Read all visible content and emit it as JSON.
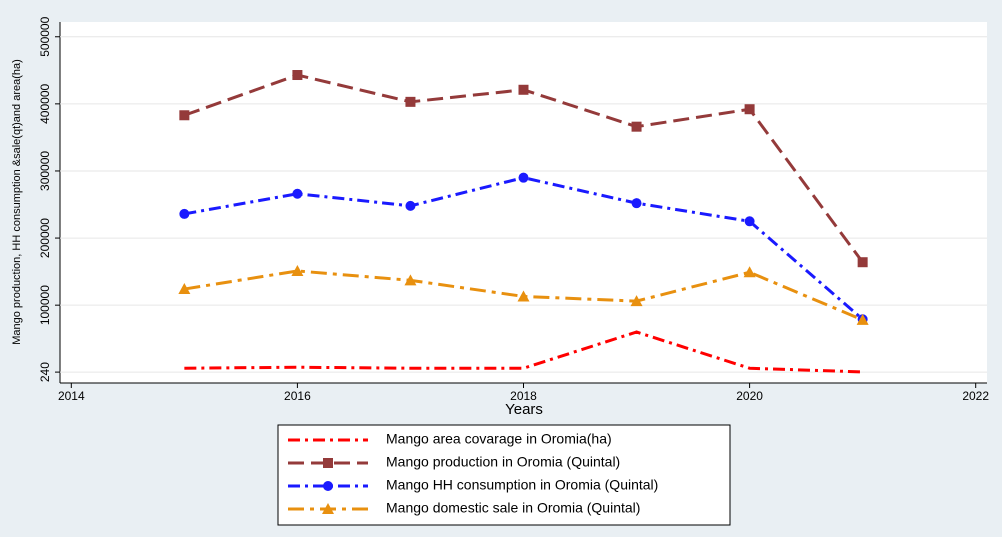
{
  "chart_data": {
    "type": "line",
    "x": [
      2015,
      2016,
      2017,
      2018,
      2019,
      2020,
      2021
    ],
    "x_label": "Years",
    "y_label": "Mango production, HH consumption &sale(qt)and area(ha)",
    "series": [
      {
        "name": "Mango area covarage in Oromia(ha)",
        "color": "#ff0000",
        "dash": "12 5 3 5",
        "marker": "none",
        "values": [
          6000,
          7500,
          6000,
          6000,
          60000,
          6000,
          500
        ]
      },
      {
        "name": "Mango production in Oromia (Quintal)",
        "color": "#943a3a",
        "dash": "16 7",
        "marker": "square",
        "values": [
          383000,
          443000,
          403000,
          421000,
          366000,
          392000,
          164000
        ]
      },
      {
        "name": "Mango HH consumption in Oromia (Quintal)",
        "color": "#1a1aff",
        "dash": "12 5 3 5",
        "marker": "circle",
        "values": [
          236000,
          266000,
          248000,
          290000,
          252000,
          225000,
          79000
        ]
      },
      {
        "name": "Mango domestic sale in Oromia (Quintal)",
        "color": "#e8900f",
        "dash": "16 6 4 6",
        "marker": "triangle",
        "values": [
          124000,
          151000,
          137000,
          113000,
          106000,
          149000,
          78000
        ]
      }
    ],
    "xlim": [
      2013.9,
      2022.1
    ],
    "xticks": [
      2014,
      2016,
      2018,
      2020,
      2022
    ],
    "ylim": [
      -16000,
      522000
    ],
    "yticks": [
      240,
      100000,
      200000,
      300000,
      400000,
      500000
    ],
    "grid": true,
    "legend": "bottom"
  }
}
